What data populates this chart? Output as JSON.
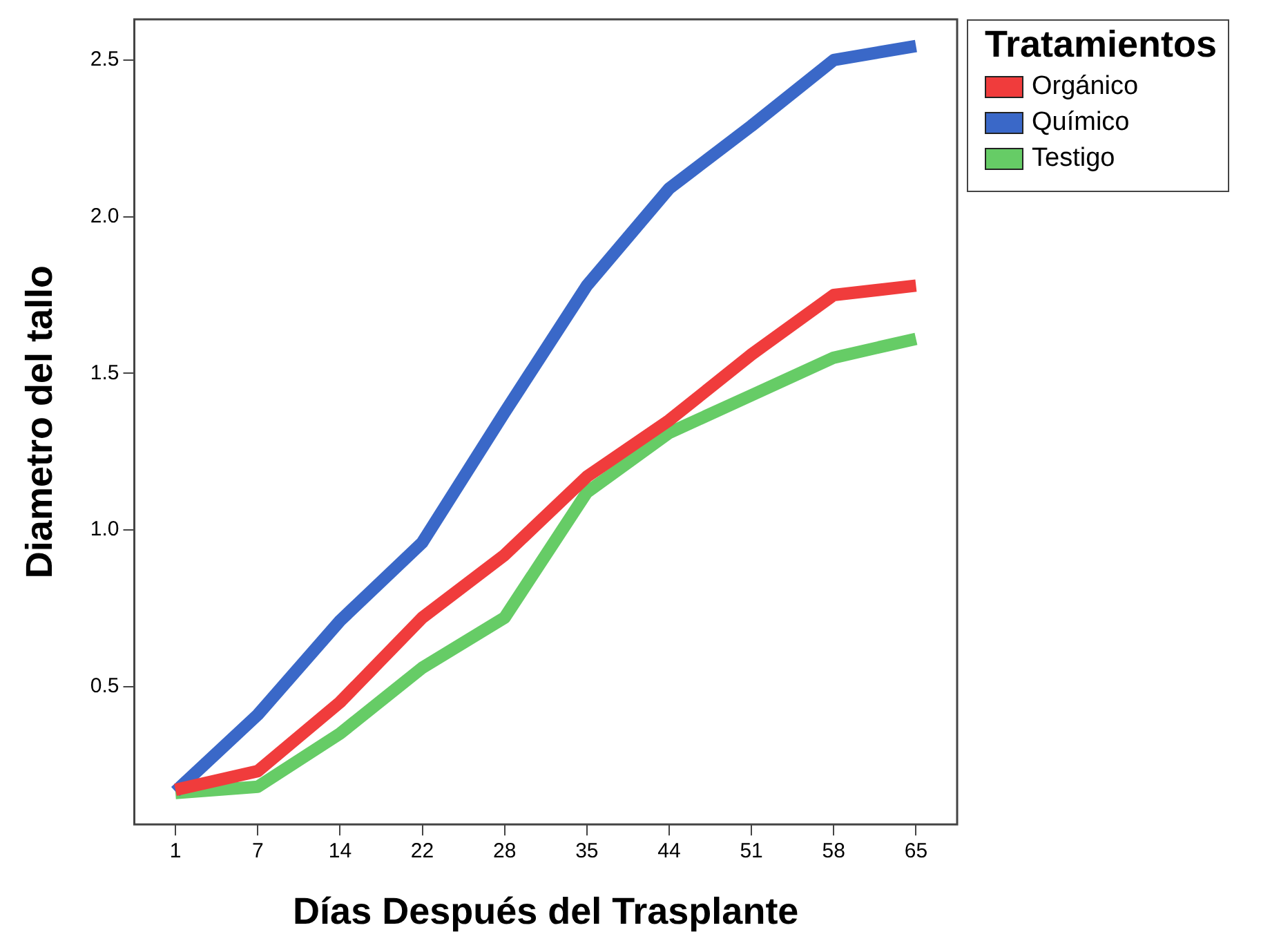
{
  "chart_data": {
    "type": "line",
    "xlabel": "Días Después del Trasplante",
    "ylabel": "Diametro del tallo",
    "legend_title": "Tratamientos",
    "legend": "top right",
    "grid": false,
    "marker": "none",
    "line_style": "solid",
    "categories": [
      "1",
      "7",
      "14",
      "22",
      "28",
      "35",
      "44",
      "51",
      "58",
      "65"
    ],
    "ylim": [
      0.06,
      2.63
    ],
    "yticks": [
      0.5,
      {
        "value": 1,
        "label": "1.0"
      },
      1.5,
      {
        "value": 2,
        "label": "2.0"
      },
      2.5
    ],
    "series": [
      {
        "name": "Orgánico",
        "color": "#f03c3c",
        "values": [
          0.17,
          0.23,
          0.45,
          0.72,
          0.92,
          1.17,
          1.35,
          1.56,
          1.75,
          1.78
        ]
      },
      {
        "name": "Químico",
        "color": "#3a68c8",
        "values": [
          0.165,
          0.41,
          0.71,
          0.96,
          1.375,
          1.78,
          2.09,
          2.29,
          2.5,
          2.545
        ]
      },
      {
        "name": "Testigo",
        "color": "#66cc66",
        "values": [
          0.16,
          0.18,
          0.35,
          0.56,
          0.72,
          1.12,
          1.31,
          1.43,
          1.55,
          1.61
        ]
      }
    ]
  }
}
